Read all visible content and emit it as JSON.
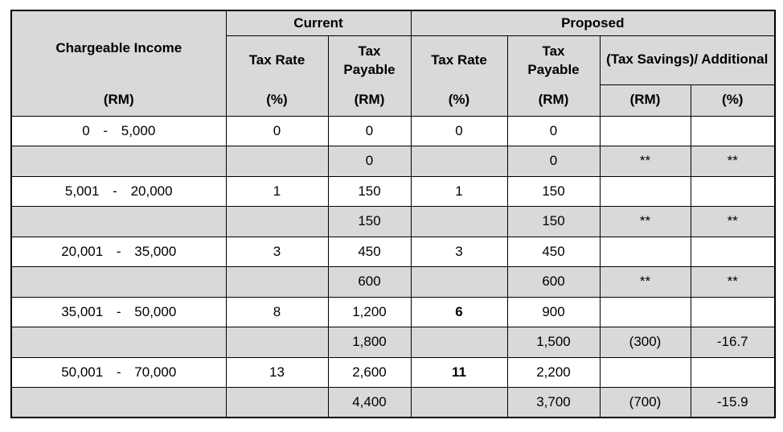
{
  "colors": {
    "shade": "#d9d9d9",
    "border": "#000000",
    "text": "#000000"
  },
  "table": {
    "header": {
      "income_title": "Chargeable Income",
      "income_unit": "(RM)",
      "current_group": "Current",
      "proposed_group": "Proposed",
      "current_rate_label": "Tax Rate",
      "current_rate_unit": "(%)",
      "current_payable_label": "Tax Payable",
      "current_payable_unit": "(RM)",
      "proposed_rate_label": "Tax Rate",
      "proposed_rate_unit": "(%)",
      "proposed_payable_label": "Tax Payable",
      "proposed_payable_unit": "(RM)",
      "savings_label": "(Tax Savings)/ Additional",
      "savings_rm_unit": "(RM)",
      "savings_pct_unit": "(%)"
    },
    "rows": [
      {
        "shaded": false,
        "income": "0 - 5,000",
        "current_rate": "0",
        "current_payable": "0",
        "proposed_rate": "0",
        "proposed_rate_bold": false,
        "proposed_payable": "0",
        "savings_rm": "",
        "savings_pct": ""
      },
      {
        "shaded": true,
        "income": "",
        "current_rate": "",
        "current_payable": "0",
        "proposed_rate": "",
        "proposed_rate_bold": false,
        "proposed_payable": "0",
        "savings_rm": "**",
        "savings_pct": "**"
      },
      {
        "shaded": false,
        "income": "5,001 - 20,000",
        "current_rate": "1",
        "current_payable": "150",
        "proposed_rate": "1",
        "proposed_rate_bold": false,
        "proposed_payable": "150",
        "savings_rm": "",
        "savings_pct": ""
      },
      {
        "shaded": true,
        "income": "",
        "current_rate": "",
        "current_payable": "150",
        "proposed_rate": "",
        "proposed_rate_bold": false,
        "proposed_payable": "150",
        "savings_rm": "**",
        "savings_pct": "**"
      },
      {
        "shaded": false,
        "income": "20,001 - 35,000",
        "current_rate": "3",
        "current_payable": "450",
        "proposed_rate": "3",
        "proposed_rate_bold": false,
        "proposed_payable": "450",
        "savings_rm": "",
        "savings_pct": ""
      },
      {
        "shaded": true,
        "income": "",
        "current_rate": "",
        "current_payable": "600",
        "proposed_rate": "",
        "proposed_rate_bold": false,
        "proposed_payable": "600",
        "savings_rm": "**",
        "savings_pct": "**"
      },
      {
        "shaded": false,
        "income": "35,001 - 50,000",
        "current_rate": "8",
        "current_payable": "1,200",
        "proposed_rate": "6",
        "proposed_rate_bold": true,
        "proposed_payable": "900",
        "savings_rm": "",
        "savings_pct": ""
      },
      {
        "shaded": true,
        "income": "",
        "current_rate": "",
        "current_payable": "1,800",
        "proposed_rate": "",
        "proposed_rate_bold": false,
        "proposed_payable": "1,500",
        "savings_rm": "(300)",
        "savings_pct": "-16.7"
      },
      {
        "shaded": false,
        "income": "50,001 - 70,000",
        "current_rate": "13",
        "current_payable": "2,600",
        "proposed_rate": "11",
        "proposed_rate_bold": true,
        "proposed_payable": "2,200",
        "savings_rm": "",
        "savings_pct": ""
      },
      {
        "shaded": true,
        "income": "",
        "current_rate": "",
        "current_payable": "4,400",
        "proposed_rate": "",
        "proposed_rate_bold": false,
        "proposed_payable": "3,700",
        "savings_rm": "(700)",
        "savings_pct": "-15.9"
      }
    ]
  }
}
